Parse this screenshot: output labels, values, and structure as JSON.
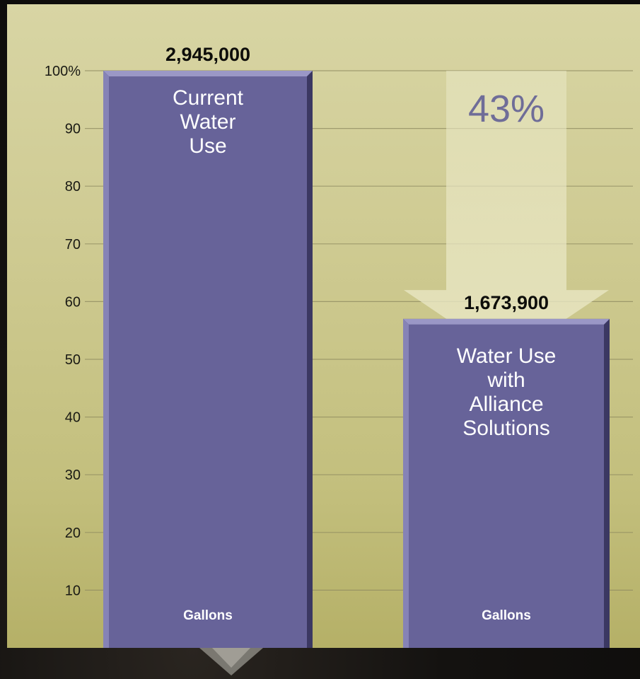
{
  "chart_data": {
    "type": "bar",
    "categories": [
      "Current Water Use",
      "Water Use with Alliance Solutions"
    ],
    "values": [
      100,
      57
    ],
    "value_labels": [
      "2,945,000",
      "1,673,900"
    ],
    "bar_label_lines": [
      [
        "Current",
        "Water",
        "Use"
      ],
      [
        "Water Use",
        "with",
        "Alliance",
        "Solutions"
      ]
    ],
    "unit_labels": [
      "Gallons",
      "Gallons"
    ],
    "yticks": [
      "10",
      "20",
      "30",
      "40",
      "50",
      "60",
      "70",
      "80",
      "90",
      "100%"
    ],
    "ylim": [
      0,
      100
    ],
    "annotation": "43%",
    "grid": true
  },
  "colors": {
    "bar": "#676399",
    "bar_edge_light": "#9a97c6",
    "bar_edge_dark": "#3b3862",
    "panel": "#cfcb93",
    "grid": "#8e8a60",
    "reduction_arrow": "#e9e7c4",
    "annotation_text": "#6f6d98"
  },
  "icons": {
    "reduction": "down-arrow-icon",
    "decor": "chevron-down-icon"
  }
}
